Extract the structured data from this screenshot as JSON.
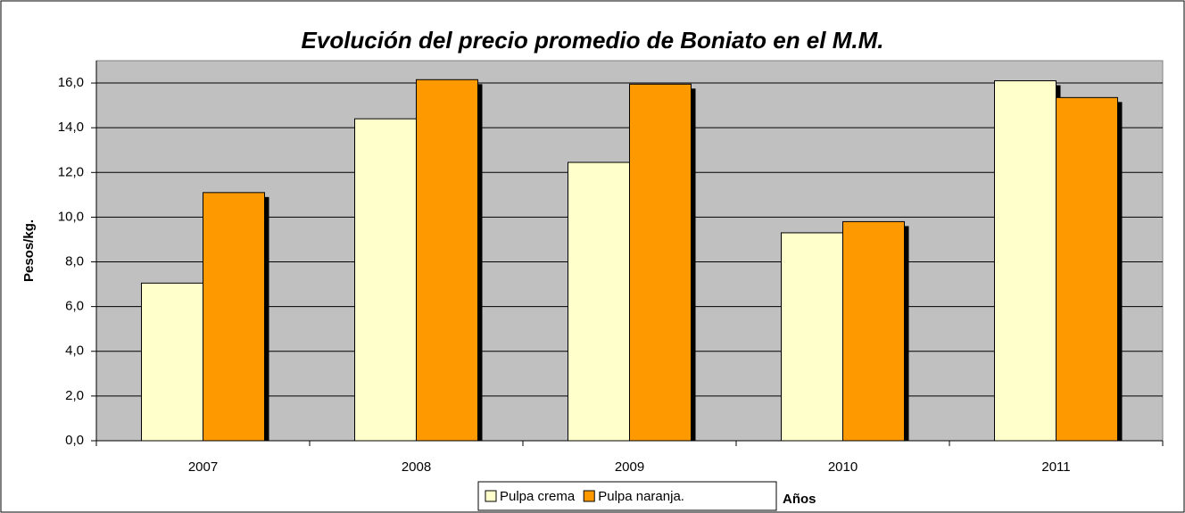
{
  "chart_data": {
    "type": "bar",
    "title": "Evolución del precio promedio de Boniato en el M.M.",
    "x_label": "Años",
    "y_label": "Pesos/kg.",
    "categories": [
      "2007",
      "2008",
      "2009",
      "2010",
      "2011"
    ],
    "series": [
      {
        "name": "Pulpa crema",
        "color": "#ffffcc",
        "values": [
          7.05,
          14.4,
          12.45,
          9.3,
          16.1
        ]
      },
      {
        "name": "Pulpa naranja.",
        "color": "#ff9900",
        "values": [
          11.1,
          16.15,
          15.95,
          9.8,
          15.35
        ]
      }
    ],
    "ylim": [
      0,
      17
    ],
    "yticks": [
      {
        "value": 0,
        "label": "0,0"
      },
      {
        "value": 2,
        "label": "2,0"
      },
      {
        "value": 4,
        "label": "4,0"
      },
      {
        "value": 6,
        "label": "6,0"
      },
      {
        "value": 8,
        "label": "8,0"
      },
      {
        "value": 10,
        "label": "10,0"
      },
      {
        "value": 12,
        "label": "12,0"
      },
      {
        "value": 14,
        "label": "14,0"
      },
      {
        "value": 16,
        "label": "16,0"
      }
    ],
    "grid": true,
    "plot_background": "#c0c0c0",
    "legend": "bottom"
  }
}
